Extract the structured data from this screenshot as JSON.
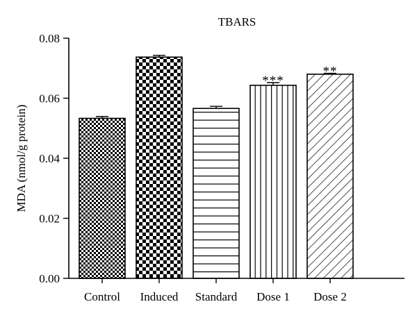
{
  "chart_data": {
    "type": "bar",
    "title": "TBARS",
    "xlabel": "",
    "ylabel": "MDA (nmol/g protein)",
    "ylim": [
      0,
      0.08
    ],
    "yticks": [
      "0.00",
      "0.02",
      "0.04",
      "0.06",
      "0.08"
    ],
    "grid": false,
    "categories": [
      "Control",
      "Induced",
      "Standard",
      "Dose 1",
      "Dose 2"
    ],
    "values": [
      0.0533,
      0.0737,
      0.0566,
      0.0643,
      0.068
    ],
    "errors": [
      0.0006,
      0.0006,
      0.0007,
      0.0009,
      0.0003
    ],
    "significance": [
      "",
      "",
      "",
      "***",
      "**"
    ],
    "patterns": [
      "fine-checker",
      "coarse-checker",
      "horizontal-lines",
      "vertical-lines",
      "diagonal-lines"
    ]
  }
}
